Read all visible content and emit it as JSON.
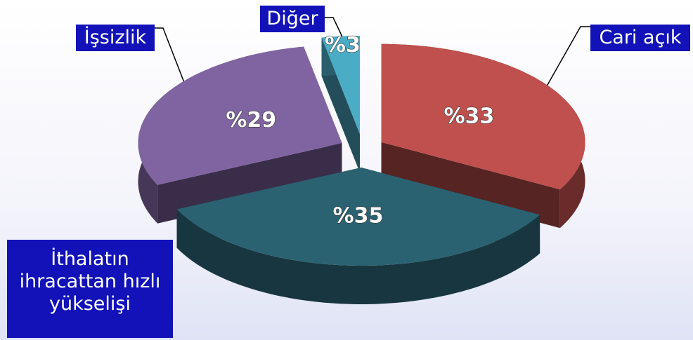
{
  "chart_data": {
    "type": "pie3d",
    "categories": [
      "Cari açık",
      "İthalatın ihracattan hızlı yükselişi",
      "İşsizlik",
      "Diğer"
    ],
    "values": [
      33,
      35,
      29,
      3
    ],
    "value_labels": [
      "%33",
      "%35",
      "%29",
      "%3"
    ],
    "colors": [
      "#c0504d",
      "#2b6272",
      "#8064a2",
      "#4bacc6"
    ]
  }
}
